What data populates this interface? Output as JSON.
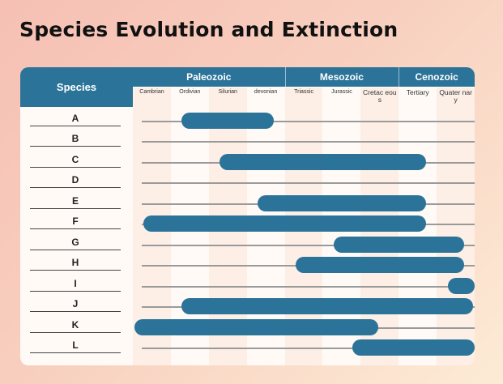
{
  "title": "Species Evolution and Extinction",
  "header": {
    "species": "Species"
  },
  "eras": [
    {
      "name": "Paleozoic",
      "from": 0,
      "to": 4
    },
    {
      "name": "Mesozoic",
      "from": 4,
      "to": 7
    },
    {
      "name": "Cenozoic",
      "from": 7,
      "to": 9
    }
  ],
  "periods": [
    "Cambrian",
    "Ordivian",
    "Silurian",
    "devonian",
    "Triassic",
    "Jurassic",
    "Cretac eous",
    "Tertiary",
    "Quater nary"
  ],
  "species": [
    {
      "label": "A",
      "start": 1.5,
      "end": 3.5
    },
    {
      "label": "B",
      "start": null,
      "end": null
    },
    {
      "label": "C",
      "start": 2.5,
      "end": 7.5
    },
    {
      "label": "D",
      "start": null,
      "end": null
    },
    {
      "label": "E",
      "start": 3.5,
      "end": 7.5
    },
    {
      "label": "F",
      "start": 0.5,
      "end": 7.5
    },
    {
      "label": "G",
      "start": 5.5,
      "end": 8.5
    },
    {
      "label": "H",
      "start": 4.5,
      "end": 8.5
    },
    {
      "label": "I",
      "start": 8.5,
      "end": 9
    },
    {
      "label": "J",
      "start": 1.5,
      "end": 8.75
    },
    {
      "label": "K",
      "start": 0.25,
      "end": 6.25
    },
    {
      "label": "L",
      "start": 6,
      "end": 9
    }
  ],
  "colors": {
    "header": "#2b7399",
    "bar": "#2b7399",
    "shade": "#fdeee6",
    "plain": "#fffaf6"
  }
}
